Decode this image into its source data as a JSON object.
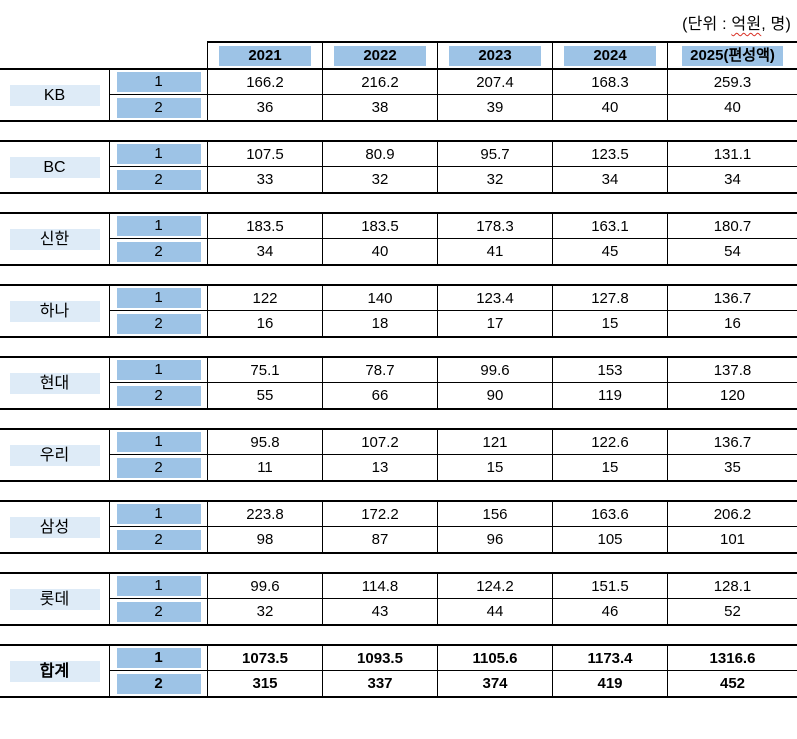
{
  "caption": {
    "prefix": "(단위 : ",
    "underlined": "억원",
    "suffix": ", 명)"
  },
  "table": {
    "years": [
      "2021",
      "2022",
      "2023",
      "2024",
      "2025(편성액)"
    ],
    "row_labels": [
      "1",
      "2"
    ],
    "companies": [
      {
        "name": "KB",
        "row1": [
          "166.2",
          "216.2",
          "207.4",
          "168.3",
          "259.3"
        ],
        "row2": [
          "36",
          "38",
          "39",
          "40",
          "40"
        ]
      },
      {
        "name": "BC",
        "row1": [
          "107.5",
          "80.9",
          "95.7",
          "123.5",
          "131.1"
        ],
        "row2": [
          "33",
          "32",
          "32",
          "34",
          "34"
        ]
      },
      {
        "name": "신한",
        "row1": [
          "183.5",
          "183.5",
          "178.3",
          "163.1",
          "180.7"
        ],
        "row2": [
          "34",
          "40",
          "41",
          "45",
          "54"
        ]
      },
      {
        "name": "하나",
        "row1": [
          "122",
          "140",
          "123.4",
          "127.8",
          "136.7"
        ],
        "row2": [
          "16",
          "18",
          "17",
          "15",
          "16"
        ]
      },
      {
        "name": "현대",
        "row1": [
          "75.1",
          "78.7",
          "99.6",
          "153",
          "137.8"
        ],
        "row2": [
          "55",
          "66",
          "90",
          "119",
          "120"
        ]
      },
      {
        "name": "우리",
        "row1": [
          "95.8",
          "107.2",
          "121",
          "122.6",
          "136.7"
        ],
        "row2": [
          "11",
          "13",
          "15",
          "15",
          "35"
        ]
      },
      {
        "name": "삼성",
        "row1": [
          "223.8",
          "172.2",
          "156",
          "163.6",
          "206.2"
        ],
        "row2": [
          "98",
          "87",
          "96",
          "105",
          "101"
        ]
      },
      {
        "name": "롯데",
        "row1": [
          "99.6",
          "114.8",
          "124.2",
          "151.5",
          "128.1"
        ],
        "row2": [
          "32",
          "43",
          "44",
          "46",
          "52"
        ]
      },
      {
        "name": "합계",
        "bold": true,
        "row1": [
          "1073.5",
          "1093.5",
          "1105.6",
          "1173.4",
          "1316.6"
        ],
        "row2": [
          "315",
          "337",
          "374",
          "419",
          "452"
        ]
      }
    ]
  },
  "colors": {
    "band_blue": "#9DC3E6",
    "band_light_blue": "#DEEBF7",
    "border_black": "#000000",
    "spellcheck_red": "#d93025"
  }
}
